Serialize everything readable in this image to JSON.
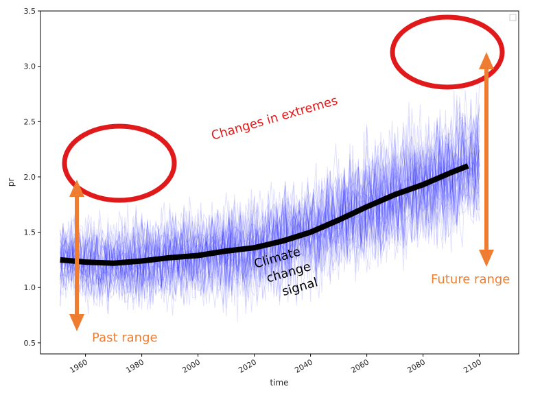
{
  "chart_data": {
    "type": "line",
    "title": "",
    "xlabel": "time",
    "ylabel": "pr",
    "xlim": [
      1944,
      2114
    ],
    "ylim": [
      0.4,
      3.5
    ],
    "x_ticks": [
      1960,
      1980,
      2000,
      2020,
      2040,
      2060,
      2080,
      2100
    ],
    "y_ticks": [
      0.5,
      1.0,
      1.5,
      2.0,
      2.5,
      3.0,
      3.5
    ],
    "x_tick_labels": [
      "1960",
      "1980",
      "2000",
      "2020",
      "2040",
      "2060",
      "2080",
      "2100"
    ],
    "y_tick_labels": [
      "0.5",
      "1.0",
      "1.5",
      "2.0",
      "2.5",
      "3.0",
      "3.5"
    ],
    "grid": false,
    "legend": "top-right (empty)",
    "ensemble": {
      "color": "#1a1aff",
      "description_count_members": 40,
      "x_start": 1951,
      "x_end": 2100,
      "spread_start": [
        0.7,
        1.9
      ],
      "spread_end": [
        1.4,
        3.0
      ]
    },
    "series": [
      {
        "color": "#000000",
        "x": [
          1951,
          1960,
          1970,
          1980,
          1990,
          2000,
          2010,
          2020,
          2030,
          2040,
          2050,
          2060,
          2070,
          2080,
          2090,
          2096
        ],
        "values": [
          1.25,
          1.23,
          1.22,
          1.24,
          1.27,
          1.29,
          1.33,
          1.36,
          1.42,
          1.5,
          1.61,
          1.73,
          1.84,
          1.93,
          2.04,
          2.1
        ]
      }
    ],
    "annotations": {
      "changes_in_extremes": "Changes in extremes",
      "past_range": "Past range",
      "future_range": "Future range",
      "climate_line1": "Climate",
      "climate_line2": "change",
      "climate_line3": "signal"
    },
    "colors": {
      "highlight_red": "#e01a1a",
      "arrow_orange": "#ee7d31"
    }
  }
}
